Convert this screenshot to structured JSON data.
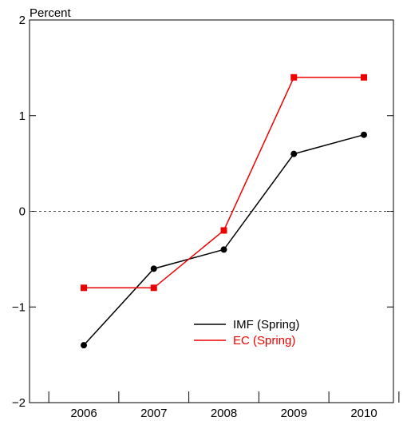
{
  "chart_data": {
    "type": "line",
    "ylabel": "Percent",
    "categories": [
      "2006",
      "2007",
      "2008",
      "2009",
      "2010"
    ],
    "ylim": [
      -2,
      2
    ],
    "yticks": [
      "−2",
      "−1",
      "0",
      "1",
      "2"
    ],
    "y_tick_values": [
      -2,
      -1,
      0,
      1,
      2
    ],
    "zero_line": true,
    "grid": false,
    "legend_position": "lower-right",
    "series": [
      {
        "name": "IMF (Spring)",
        "color": "#000000",
        "marker": "circle",
        "values": [
          -1.4,
          -0.6,
          -0.4,
          0.6,
          0.8
        ]
      },
      {
        "name": "EC (Spring)",
        "color": "#ee0000",
        "marker": "square",
        "values": [
          -0.8,
          -0.8,
          -0.2,
          1.4,
          1.4
        ]
      }
    ]
  }
}
